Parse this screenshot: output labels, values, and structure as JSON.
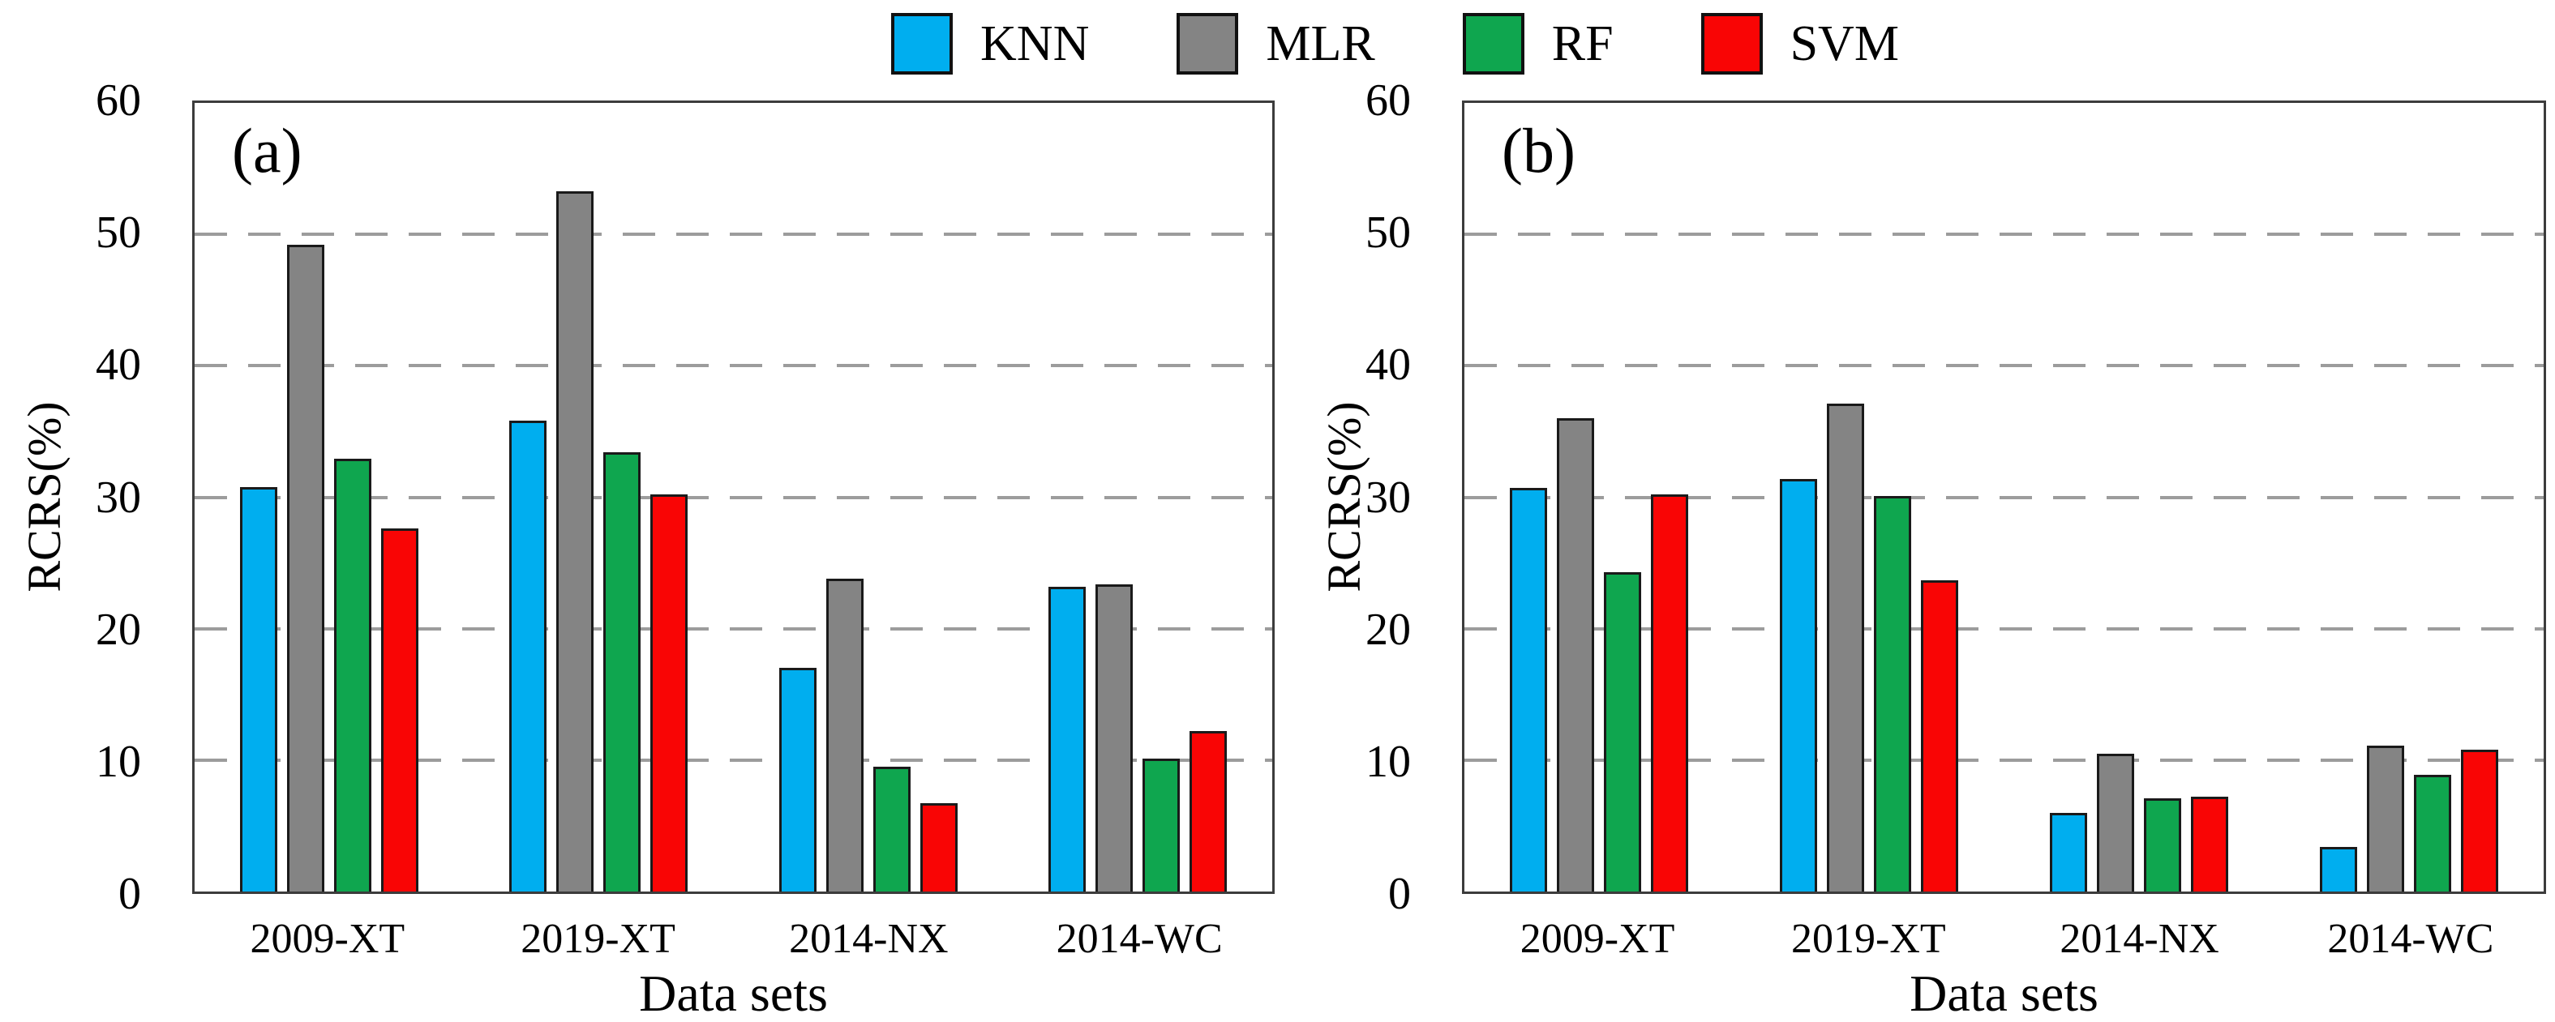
{
  "figure": {
    "background": "#ffffff",
    "frame_color": "#3c3c3c",
    "gridline_color": "#9c9c9c",
    "bar_border_color": "#1a1a1a"
  },
  "legend": [
    {
      "name": "KNN",
      "color": "#00AEEF"
    },
    {
      "name": "MLR",
      "color": "#848484"
    },
    {
      "name": "RF",
      "color": "#0FA64F"
    },
    {
      "name": "SVM",
      "color": "#F90505"
    }
  ],
  "chart_data": [
    {
      "type": "bar",
      "panel": "(a)",
      "categories": [
        "2009-XT",
        "2019-XT",
        "2014-NX",
        "2014-WC"
      ],
      "series": [
        {
          "name": "KNN",
          "values": [
            30.8,
            35.8,
            17.0,
            23.2
          ]
        },
        {
          "name": "MLR",
          "values": [
            49.2,
            53.3,
            23.8,
            23.4
          ]
        },
        {
          "name": "RF",
          "values": [
            32.9,
            33.4,
            9.5,
            10.1
          ]
        },
        {
          "name": "SVM",
          "values": [
            27.6,
            30.2,
            6.7,
            12.2
          ]
        }
      ],
      "xlabel": "Data sets",
      "ylabel": "RCRS(%)",
      "ylim": [
        0,
        60
      ],
      "yticks": [
        0,
        10,
        20,
        30,
        40,
        50,
        60
      ],
      "grid": "horizontal dashed at 10,20,30,40,50",
      "legend_position": "top-center above panels"
    },
    {
      "type": "bar",
      "panel": "(b)",
      "categories": [
        "2009-XT",
        "2019-XT",
        "2014-NX",
        "2014-WC"
      ],
      "series": [
        {
          "name": "KNN",
          "values": [
            30.7,
            31.4,
            6.0,
            3.4
          ]
        },
        {
          "name": "MLR",
          "values": [
            36.0,
            37.1,
            10.5,
            11.1
          ]
        },
        {
          "name": "RF",
          "values": [
            24.3,
            30.1,
            7.1,
            8.9
          ]
        },
        {
          "name": "SVM",
          "values": [
            30.2,
            23.7,
            7.2,
            10.8
          ]
        }
      ],
      "xlabel": "Data sets",
      "ylabel": "RCRS(%)",
      "ylim": [
        0,
        60
      ],
      "yticks": [
        0,
        10,
        20,
        30,
        40,
        50,
        60
      ],
      "grid": "horizontal dashed at 10,20,30,40,50",
      "legend_position": "top-center above panels"
    }
  ]
}
